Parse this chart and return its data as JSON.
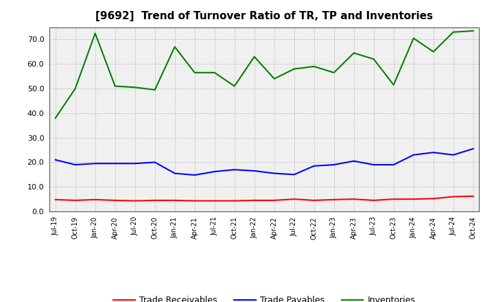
{
  "title": "[9692]  Trend of Turnover Ratio of TR, TP and Inventories",
  "x_labels": [
    "Jul-19",
    "Oct-19",
    "Jan-20",
    "Apr-20",
    "Jul-20",
    "Oct-20",
    "Jan-21",
    "Apr-21",
    "Jul-21",
    "Oct-21",
    "Jan-22",
    "Apr-22",
    "Jul-22",
    "Oct-22",
    "Jan-23",
    "Apr-23",
    "Jul-23",
    "Oct-23",
    "Jan-24",
    "Apr-24",
    "Jul-24",
    "Oct-24"
  ],
  "trade_receivables": [
    4.8,
    4.5,
    4.8,
    4.5,
    4.3,
    4.5,
    4.5,
    4.3,
    4.3,
    4.3,
    4.5,
    4.5,
    5.0,
    4.5,
    4.8,
    5.0,
    4.5,
    5.0,
    5.0,
    5.2,
    6.0,
    6.2
  ],
  "trade_payables": [
    21.0,
    19.0,
    19.5,
    19.5,
    19.5,
    20.0,
    15.5,
    14.8,
    16.2,
    17.0,
    16.5,
    15.5,
    15.0,
    18.5,
    19.0,
    20.5,
    19.0,
    19.0,
    23.0,
    24.0,
    23.0,
    25.5
  ],
  "inventories": [
    38.0,
    50.0,
    72.5,
    51.0,
    50.5,
    49.5,
    67.0,
    56.5,
    56.5,
    51.0,
    63.0,
    54.0,
    58.0,
    59.0,
    56.5,
    64.5,
    62.0,
    51.5,
    70.5,
    65.0,
    73.0,
    73.5
  ],
  "tr_color": "#ff0000",
  "tp_color": "#0000ff",
  "inv_color": "#008000",
  "ylim": [
    0,
    75
  ],
  "yticks": [
    0.0,
    10.0,
    20.0,
    30.0,
    40.0,
    50.0,
    60.0,
    70.0
  ],
  "legend_labels": [
    "Trade Receivables",
    "Trade Payables",
    "Inventories"
  ],
  "bg_color": "#ffffff",
  "plot_bg_color": "#f0f0f0",
  "grid_color": "#999999"
}
